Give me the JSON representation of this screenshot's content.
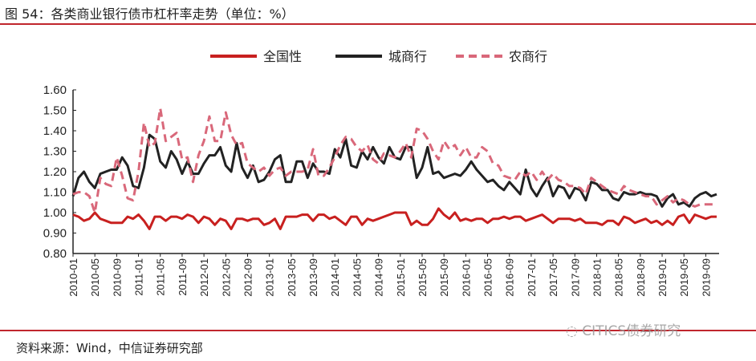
{
  "title": "图 54：各类商业银行债市杠杆率走势（单位：%）",
  "source": "资料来源：Wind，中信证券研究部",
  "watermark": "CITICS债券研究",
  "chart_data": {
    "type": "line",
    "title": "",
    "xlabel": "",
    "ylabel": "",
    "ylim": [
      0.8,
      1.6
    ],
    "yticks": [
      "0.80",
      "0.90",
      "1.00",
      "1.10",
      "1.20",
      "1.30",
      "1.40",
      "1.50",
      "1.60"
    ],
    "x_start": "2010-01",
    "x_end": "2019-11",
    "xticks": [
      "2010-01",
      "2010-05",
      "2010-09",
      "2011-01",
      "2011-05",
      "2011-09",
      "2012-01",
      "2012-05",
      "2012-09",
      "2013-01",
      "2013-05",
      "2013-09",
      "2014-01",
      "2014-05",
      "2014-09",
      "2015-01",
      "2015-05",
      "2015-09",
      "2016-01",
      "2016-05",
      "2016-09",
      "2017-01",
      "2017-05",
      "2017-09",
      "2018-01",
      "2018-05",
      "2018-09",
      "2019-01",
      "2019-05",
      "2019-09"
    ],
    "grid": false,
    "legend_position": "top",
    "series": [
      {
        "name": "全国性",
        "color": "#c8201f",
        "dash": false,
        "values": [
          0.99,
          0.98,
          0.96,
          0.97,
          1.0,
          0.97,
          0.96,
          0.95,
          0.95,
          0.95,
          0.98,
          0.97,
          0.99,
          0.96,
          0.92,
          0.98,
          0.98,
          0.96,
          0.98,
          0.98,
          0.97,
          0.99,
          0.98,
          0.95,
          0.98,
          0.97,
          0.94,
          0.97,
          0.96,
          0.92,
          0.97,
          0.97,
          0.96,
          0.97,
          0.97,
          0.94,
          0.95,
          0.97,
          0.92,
          0.98,
          0.98,
          0.98,
          0.99,
          0.99,
          0.96,
          0.99,
          0.99,
          0.97,
          0.98,
          0.96,
          0.94,
          0.98,
          0.98,
          0.94,
          0.97,
          0.96,
          0.97,
          0.98,
          0.99,
          1.0,
          1.0,
          1.0,
          0.94,
          0.96,
          0.94,
          0.94,
          0.97,
          1.02,
          0.99,
          0.97,
          1.0,
          0.96,
          0.97,
          0.96,
          0.97,
          0.97,
          0.95,
          0.97,
          0.97,
          0.98,
          0.97,
          0.98,
          0.98,
          0.96,
          0.97,
          0.98,
          0.99,
          0.97,
          0.95,
          0.97,
          0.97,
          0.97,
          0.96,
          0.97,
          0.95,
          0.95,
          0.95,
          0.94,
          0.96,
          0.96,
          0.94,
          0.98,
          0.97,
          0.95,
          0.96,
          0.97,
          0.95,
          0.96,
          0.94,
          0.96,
          0.94,
          0.98,
          0.99,
          0.95,
          0.99,
          0.98,
          0.97,
          0.98,
          0.98
        ]
      },
      {
        "name": "城商行",
        "color": "#222222",
        "dash": false,
        "values": [
          1.08,
          1.17,
          1.2,
          1.15,
          1.12,
          1.19,
          1.2,
          1.21,
          1.21,
          1.27,
          1.23,
          1.13,
          1.12,
          1.22,
          1.38,
          1.36,
          1.25,
          1.22,
          1.3,
          1.26,
          1.19,
          1.25,
          1.19,
          1.19,
          1.24,
          1.28,
          1.28,
          1.32,
          1.23,
          1.2,
          1.34,
          1.22,
          1.17,
          1.23,
          1.15,
          1.16,
          1.2,
          1.26,
          1.28,
          1.15,
          1.15,
          1.25,
          1.25,
          1.17,
          1.24,
          1.2,
          1.2,
          1.19,
          1.31,
          1.27,
          1.36,
          1.23,
          1.22,
          1.3,
          1.26,
          1.32,
          1.27,
          1.24,
          1.32,
          1.27,
          1.26,
          1.32,
          1.32,
          1.17,
          1.22,
          1.32,
          1.19,
          1.2,
          1.17,
          1.18,
          1.19,
          1.18,
          1.21,
          1.25,
          1.21,
          1.18,
          1.15,
          1.16,
          1.13,
          1.11,
          1.15,
          1.12,
          1.09,
          1.21,
          1.12,
          1.08,
          1.13,
          1.17,
          1.08,
          1.13,
          1.12,
          1.07,
          1.12,
          1.11,
          1.06,
          1.15,
          1.14,
          1.11,
          1.11,
          1.07,
          1.06,
          1.1,
          1.09,
          1.09,
          1.1,
          1.09,
          1.09,
          1.08,
          1.03,
          1.07,
          1.09,
          1.04,
          1.05,
          1.03,
          1.07,
          1.09,
          1.1,
          1.08,
          1.09
        ]
      },
      {
        "name": "农商行",
        "color": "#d9687a",
        "dash": true,
        "values": [
          1.09,
          1.1,
          1.1,
          1.08,
          1.0,
          1.17,
          1.14,
          1.13,
          1.27,
          1.18,
          1.07,
          1.06,
          1.2,
          1.44,
          1.32,
          1.34,
          1.51,
          1.35,
          1.37,
          1.39,
          1.26,
          1.27,
          1.15,
          1.28,
          1.35,
          1.47,
          1.35,
          1.35,
          1.49,
          1.38,
          1.33,
          1.34,
          1.24,
          1.22,
          1.2,
          1.22,
          1.18,
          1.21,
          1.22,
          1.18,
          1.2,
          1.2,
          1.2,
          1.21,
          1.31,
          1.18,
          1.18,
          1.22,
          1.27,
          1.33,
          1.37,
          1.36,
          1.32,
          1.3,
          1.33,
          1.26,
          1.24,
          1.29,
          1.28,
          1.27,
          1.3,
          1.34,
          1.27,
          1.41,
          1.4,
          1.36,
          1.3,
          1.26,
          1.35,
          1.31,
          1.33,
          1.28,
          1.32,
          1.27,
          1.27,
          1.32,
          1.3,
          1.24,
          1.23,
          1.18,
          1.17,
          1.16,
          1.2,
          1.18,
          1.2,
          1.16,
          1.2,
          1.16,
          1.19,
          1.16,
          1.15,
          1.13,
          1.13,
          1.12,
          1.09,
          1.17,
          1.15,
          1.13,
          1.11,
          1.1,
          1.09,
          1.13,
          1.11,
          1.1,
          1.09,
          1.08,
          1.08,
          1.04,
          1.06,
          1.08,
          1.05,
          1.07,
          1.06,
          1.04,
          1.03,
          1.04,
          1.04,
          1.04,
          1.04
        ]
      }
    ]
  }
}
